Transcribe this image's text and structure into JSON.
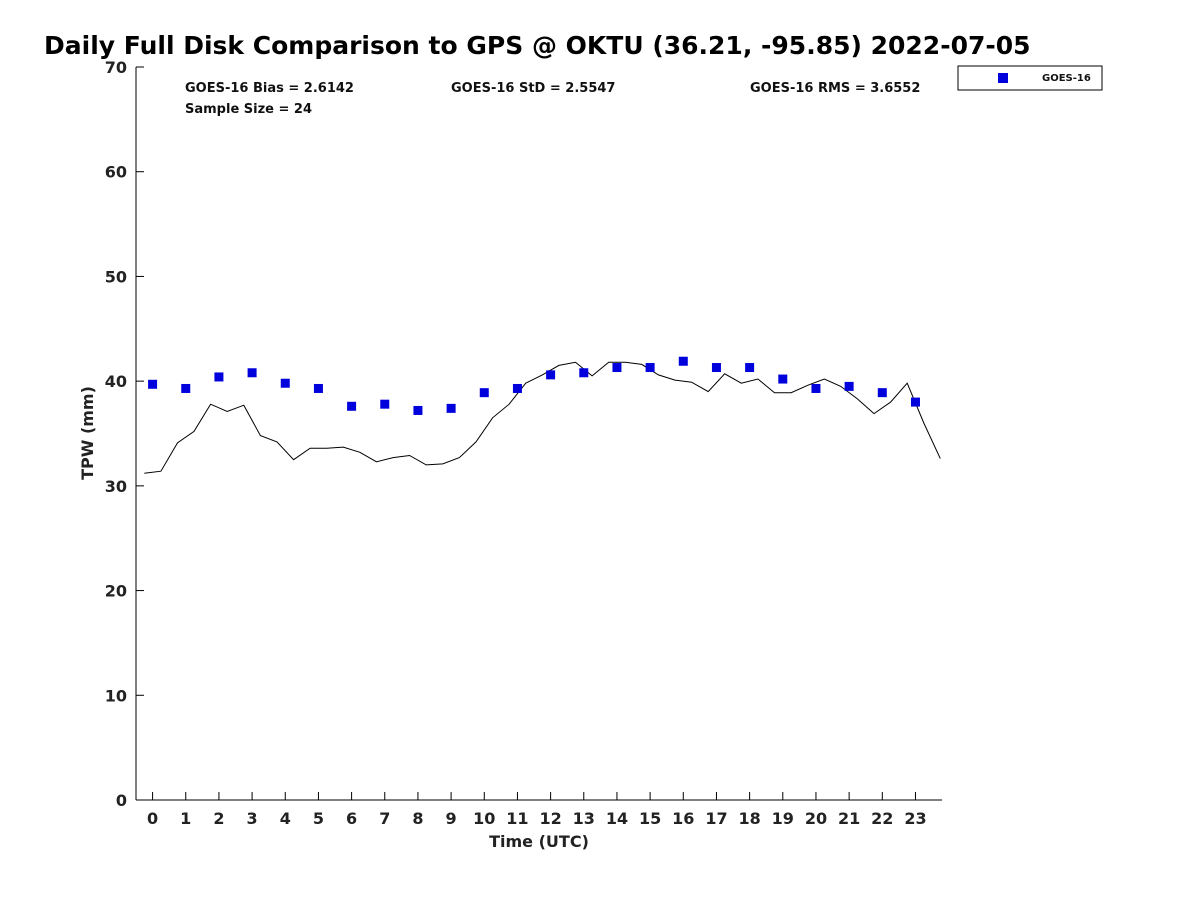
{
  "chart_data": {
    "type": "scatter",
    "title": "Daily Full Disk Comparison to GPS @ OKTU (36.21, -95.85) 2022-07-05",
    "xlabel": "Time (UTC)",
    "ylabel": "TPW (mm)",
    "xlim": [
      -0.5,
      23.8
    ],
    "ylim": [
      0,
      70
    ],
    "x_ticks": [
      0,
      1,
      2,
      3,
      4,
      5,
      6,
      7,
      8,
      9,
      10,
      11,
      12,
      13,
      14,
      15,
      16,
      17,
      18,
      19,
      20,
      21,
      22,
      23
    ],
    "y_ticks": [
      0,
      10,
      20,
      30,
      40,
      50,
      60,
      70
    ],
    "grid": false,
    "legend_position": "top-right, outside plot area",
    "stats": {
      "bias": "GOES-16 Bias = 2.6142",
      "std": "GOES-16 StD = 2.5547",
      "rms": "GOES-16 RMS = 3.6552",
      "sample_size": "Sample Size = 24"
    },
    "series": [
      {
        "name": "GOES-16",
        "marker": "square",
        "color": "#0000dd",
        "x": [
          0,
          1,
          2,
          3,
          4,
          5,
          6,
          7,
          8,
          9,
          10,
          11,
          12,
          13,
          14,
          15,
          16,
          17,
          18,
          19,
          20,
          21,
          22,
          23
        ],
        "y": [
          39.7,
          39.3,
          40.4,
          40.8,
          39.8,
          39.3,
          37.6,
          37.8,
          37.2,
          37.4,
          38.9,
          39.3,
          40.6,
          40.8,
          41.3,
          41.3,
          41.9,
          41.3,
          41.3,
          40.2,
          39.3,
          39.5,
          38.9,
          38.0
        ]
      },
      {
        "marker": "none",
        "line_style": "solid",
        "color": "#000000",
        "x": [
          -0.25,
          0.25,
          0.75,
          1.25,
          1.75,
          2.25,
          2.75,
          3.25,
          3.75,
          4.25,
          4.75,
          5.25,
          5.75,
          6.25,
          6.75,
          7.25,
          7.75,
          8.25,
          8.75,
          9.25,
          9.75,
          10.25,
          10.75,
          11.25,
          11.75,
          12.25,
          12.75,
          13.25,
          13.75,
          14.25,
          14.75,
          15.25,
          15.75,
          16.25,
          16.75,
          17.25,
          17.75,
          18.25,
          18.75,
          19.25,
          19.75,
          20.25,
          20.75,
          21.25,
          21.75,
          22.25,
          22.75,
          23.25,
          23.75
        ],
        "y": [
          31.2,
          31.4,
          34.1,
          35.2,
          37.8,
          37.1,
          37.7,
          34.8,
          34.2,
          32.5,
          33.6,
          33.6,
          33.7,
          33.2,
          32.3,
          32.7,
          32.9,
          32.0,
          32.1,
          32.7,
          34.2,
          36.5,
          37.8,
          39.8,
          40.6,
          41.5,
          41.8,
          40.5,
          41.8,
          41.8,
          41.6,
          40.6,
          40.1,
          39.9,
          39.0,
          40.7,
          39.8,
          40.2,
          38.9,
          38.9,
          39.6,
          40.2,
          39.5,
          38.3,
          36.9,
          38.0,
          39.8,
          36.0,
          32.6
        ]
      }
    ]
  }
}
